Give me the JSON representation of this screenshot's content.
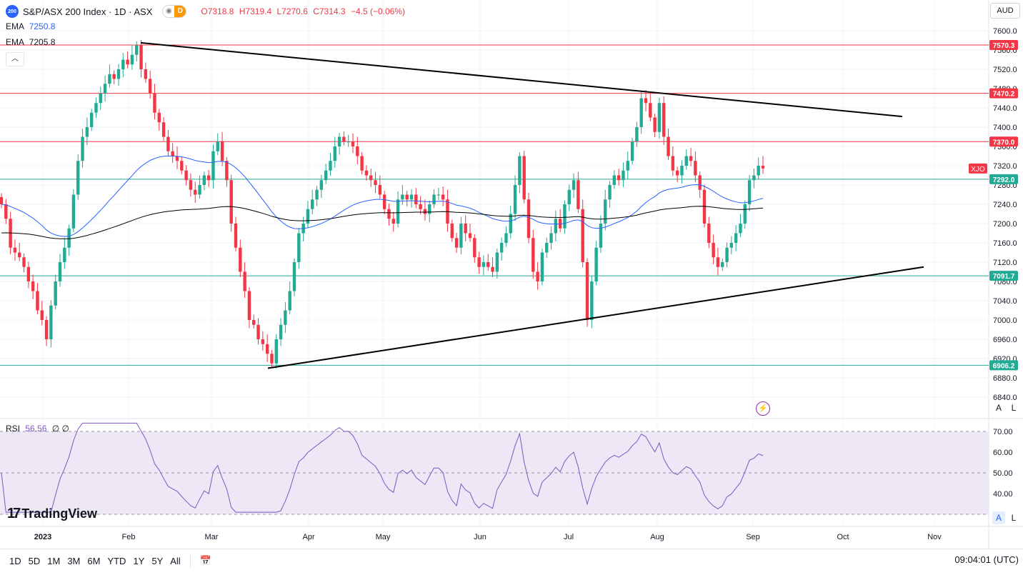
{
  "symbol": {
    "badge": "200",
    "name": "S&P/ASX 200 Index · 1D · ASX",
    "mode_badge": "D",
    "open": "O7318.8",
    "high": "H7319.4",
    "low": "L7270.6",
    "close": "C7314.3",
    "change": "−4.5 (−0.06%)"
  },
  "ema1": {
    "label": "EMA",
    "value": "7250.8"
  },
  "ema2": {
    "label": "EMA",
    "value": "7205.8"
  },
  "currency": "AUD",
  "ticker_tag": "XJO",
  "price_axis": {
    "ticks": [
      "7600.0",
      "7560.0",
      "7520.0",
      "7480.0",
      "7440.0",
      "7400.0",
      "7360.0",
      "7320.0",
      "7280.0",
      "7240.0",
      "7200.0",
      "7160.0",
      "7120.0",
      "7080.0",
      "7040.0",
      "7000.0",
      "6960.0",
      "6920.0",
      "6880.0",
      "6840.0"
    ],
    "min": 6840,
    "max": 7600
  },
  "levels": [
    {
      "value": 7570.3,
      "label": "7570.3",
      "color": "#f23645"
    },
    {
      "value": 7470.2,
      "label": "7470.2",
      "color": "#f23645"
    },
    {
      "value": 7370.0,
      "label": "7370.0",
      "color": "#f23645"
    },
    {
      "value": 7292.0,
      "label": "7292.0",
      "color": "#22ab94"
    },
    {
      "value": 7091.7,
      "label": "7091.7",
      "color": "#22ab94"
    },
    {
      "value": 6906.2,
      "label": "6906.2",
      "color": "#22ab94"
    }
  ],
  "time_axis": [
    "2023",
    "Feb",
    "Mar",
    "Apr",
    "May",
    "Jun",
    "Jul",
    "Aug",
    "Sep",
    "Oct",
    "Nov"
  ],
  "rsi": {
    "label": "RSI",
    "value": "56.56",
    "extra": "∅ ∅",
    "ticks": [
      "70.00",
      "60.00",
      "50.00",
      "40.00"
    ],
    "upper": 70,
    "lower": 30
  },
  "logo": "TradingView",
  "timeframes": [
    "1D",
    "5D",
    "1M",
    "3M",
    "6M",
    "YTD",
    "1Y",
    "5Y",
    "All"
  ],
  "clock": "09:04:01 (UTC)",
  "axis_buttons": {
    "auto": "A",
    "log": "L"
  },
  "colors": {
    "up": "#22ab94",
    "down": "#f23645",
    "ema_fast": "#2962ff",
    "ema_slow": "#000000",
    "rsi": "#7e57c2",
    "rsi_band": "#ede7f6"
  },
  "chart_data": {
    "type": "candlestick",
    "title": "S&P/ASX 200 Index · 1D · ASX",
    "closes": [
      7240,
      7210,
      7150,
      7140,
      7130,
      7110,
      7080,
      7060,
      7020,
      7000,
      6960,
      7030,
      7080,
      7120,
      7150,
      7190,
      7260,
      7330,
      7380,
      7400,
      7430,
      7450,
      7470,
      7490,
      7510,
      7500,
      7520,
      7540,
      7530,
      7550,
      7570,
      7520,
      7500,
      7470,
      7430,
      7410,
      7380,
      7350,
      7340,
      7330,
      7310,
      7290,
      7270,
      7260,
      7280,
      7300,
      7290,
      7350,
      7370,
      7330,
      7290,
      7200,
      7150,
      7100,
      7060,
      7000,
      6990,
      6960,
      6950,
      6930,
      6910,
      6960,
      6990,
      7020,
      7060,
      7120,
      7180,
      7200,
      7230,
      7250,
      7270,
      7290,
      7310,
      7330,
      7360,
      7380,
      7370,
      7370,
      7360,
      7340,
      7310,
      7300,
      7290,
      7280,
      7260,
      7230,
      7210,
      7200,
      7250,
      7260,
      7250,
      7260,
      7240,
      7230,
      7220,
      7240,
      7260,
      7260,
      7250,
      7200,
      7170,
      7150,
      7200,
      7180,
      7170,
      7130,
      7110,
      7120,
      7110,
      7100,
      7140,
      7160,
      7180,
      7220,
      7280,
      7340,
      7250,
      7170,
      7100,
      7080,
      7140,
      7160,
      7180,
      7210,
      7190,
      7240,
      7270,
      7290,
      7230,
      7120,
      7000,
      7080,
      7150,
      7200,
      7250,
      7280,
      7300,
      7290,
      7310,
      7330,
      7370,
      7400,
      7460,
      7450,
      7420,
      7390,
      7450,
      7380,
      7340,
      7310,
      7300,
      7320,
      7340,
      7330,
      7300,
      7270,
      7200,
      7160,
      7130,
      7110,
      7120,
      7150,
      7160,
      7180,
      7200,
      7240,
      7290,
      7300,
      7320,
      7314.3
    ]
  }
}
